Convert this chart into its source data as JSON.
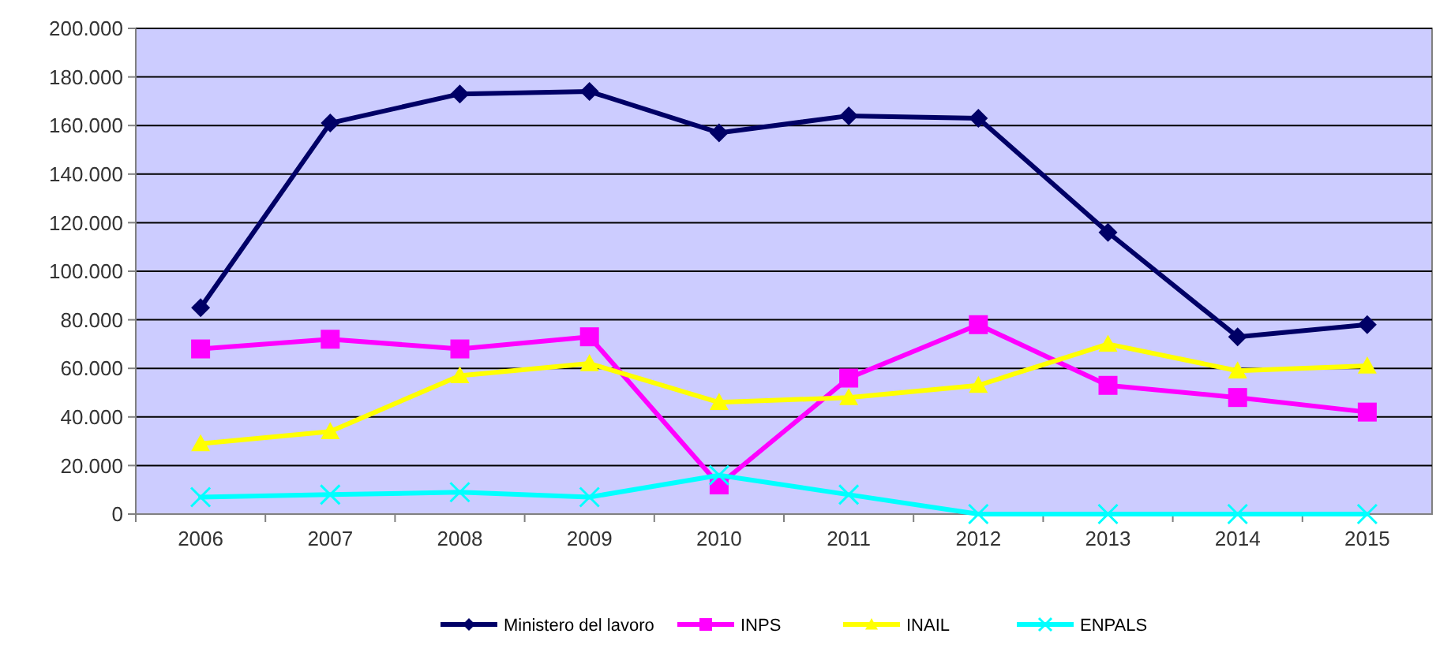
{
  "chart_data": {
    "type": "line",
    "categories": [
      "2006",
      "2007",
      "2008",
      "2009",
      "2010",
      "2011",
      "2012",
      "2013",
      "2014",
      "2015"
    ],
    "series": [
      {
        "name": "Ministero del lavoro",
        "color": "#000066",
        "marker": "diamond",
        "values": [
          85000,
          161000,
          173000,
          174000,
          157000,
          164000,
          163000,
          116000,
          73000,
          78000
        ]
      },
      {
        "name": "INPS",
        "color": "#ff00ff",
        "marker": "square",
        "values": [
          68000,
          72000,
          68000,
          73000,
          12000,
          56000,
          78000,
          53000,
          48000,
          42000
        ]
      },
      {
        "name": "INAIL",
        "color": "#ffff00",
        "marker": "triangle",
        "values": [
          29000,
          34000,
          57000,
          62000,
          46000,
          48000,
          53000,
          70000,
          59000,
          61000
        ]
      },
      {
        "name": "ENPALS",
        "color": "#00ffff",
        "marker": "cross",
        "values": [
          7000,
          8000,
          9000,
          7000,
          16000,
          8000,
          0,
          0,
          0,
          0
        ]
      }
    ],
    "ylim": [
      0,
      200000
    ],
    "yticks": [
      {
        "value": 0,
        "label": "0"
      },
      {
        "value": 20000,
        "label": "20.000"
      },
      {
        "value": 40000,
        "label": "40.000"
      },
      {
        "value": 60000,
        "label": "60.000"
      },
      {
        "value": 80000,
        "label": "80.000"
      },
      {
        "value": 100000,
        "label": "100.000"
      },
      {
        "value": 120000,
        "label": "120.000"
      },
      {
        "value": 140000,
        "label": "140.000"
      },
      {
        "value": 160000,
        "label": "160.000"
      },
      {
        "value": 180000,
        "label": "180.000"
      },
      {
        "value": 200000,
        "label": "200.000"
      }
    ],
    "grid": "y",
    "legend": "bottom",
    "line_style": "solid"
  }
}
